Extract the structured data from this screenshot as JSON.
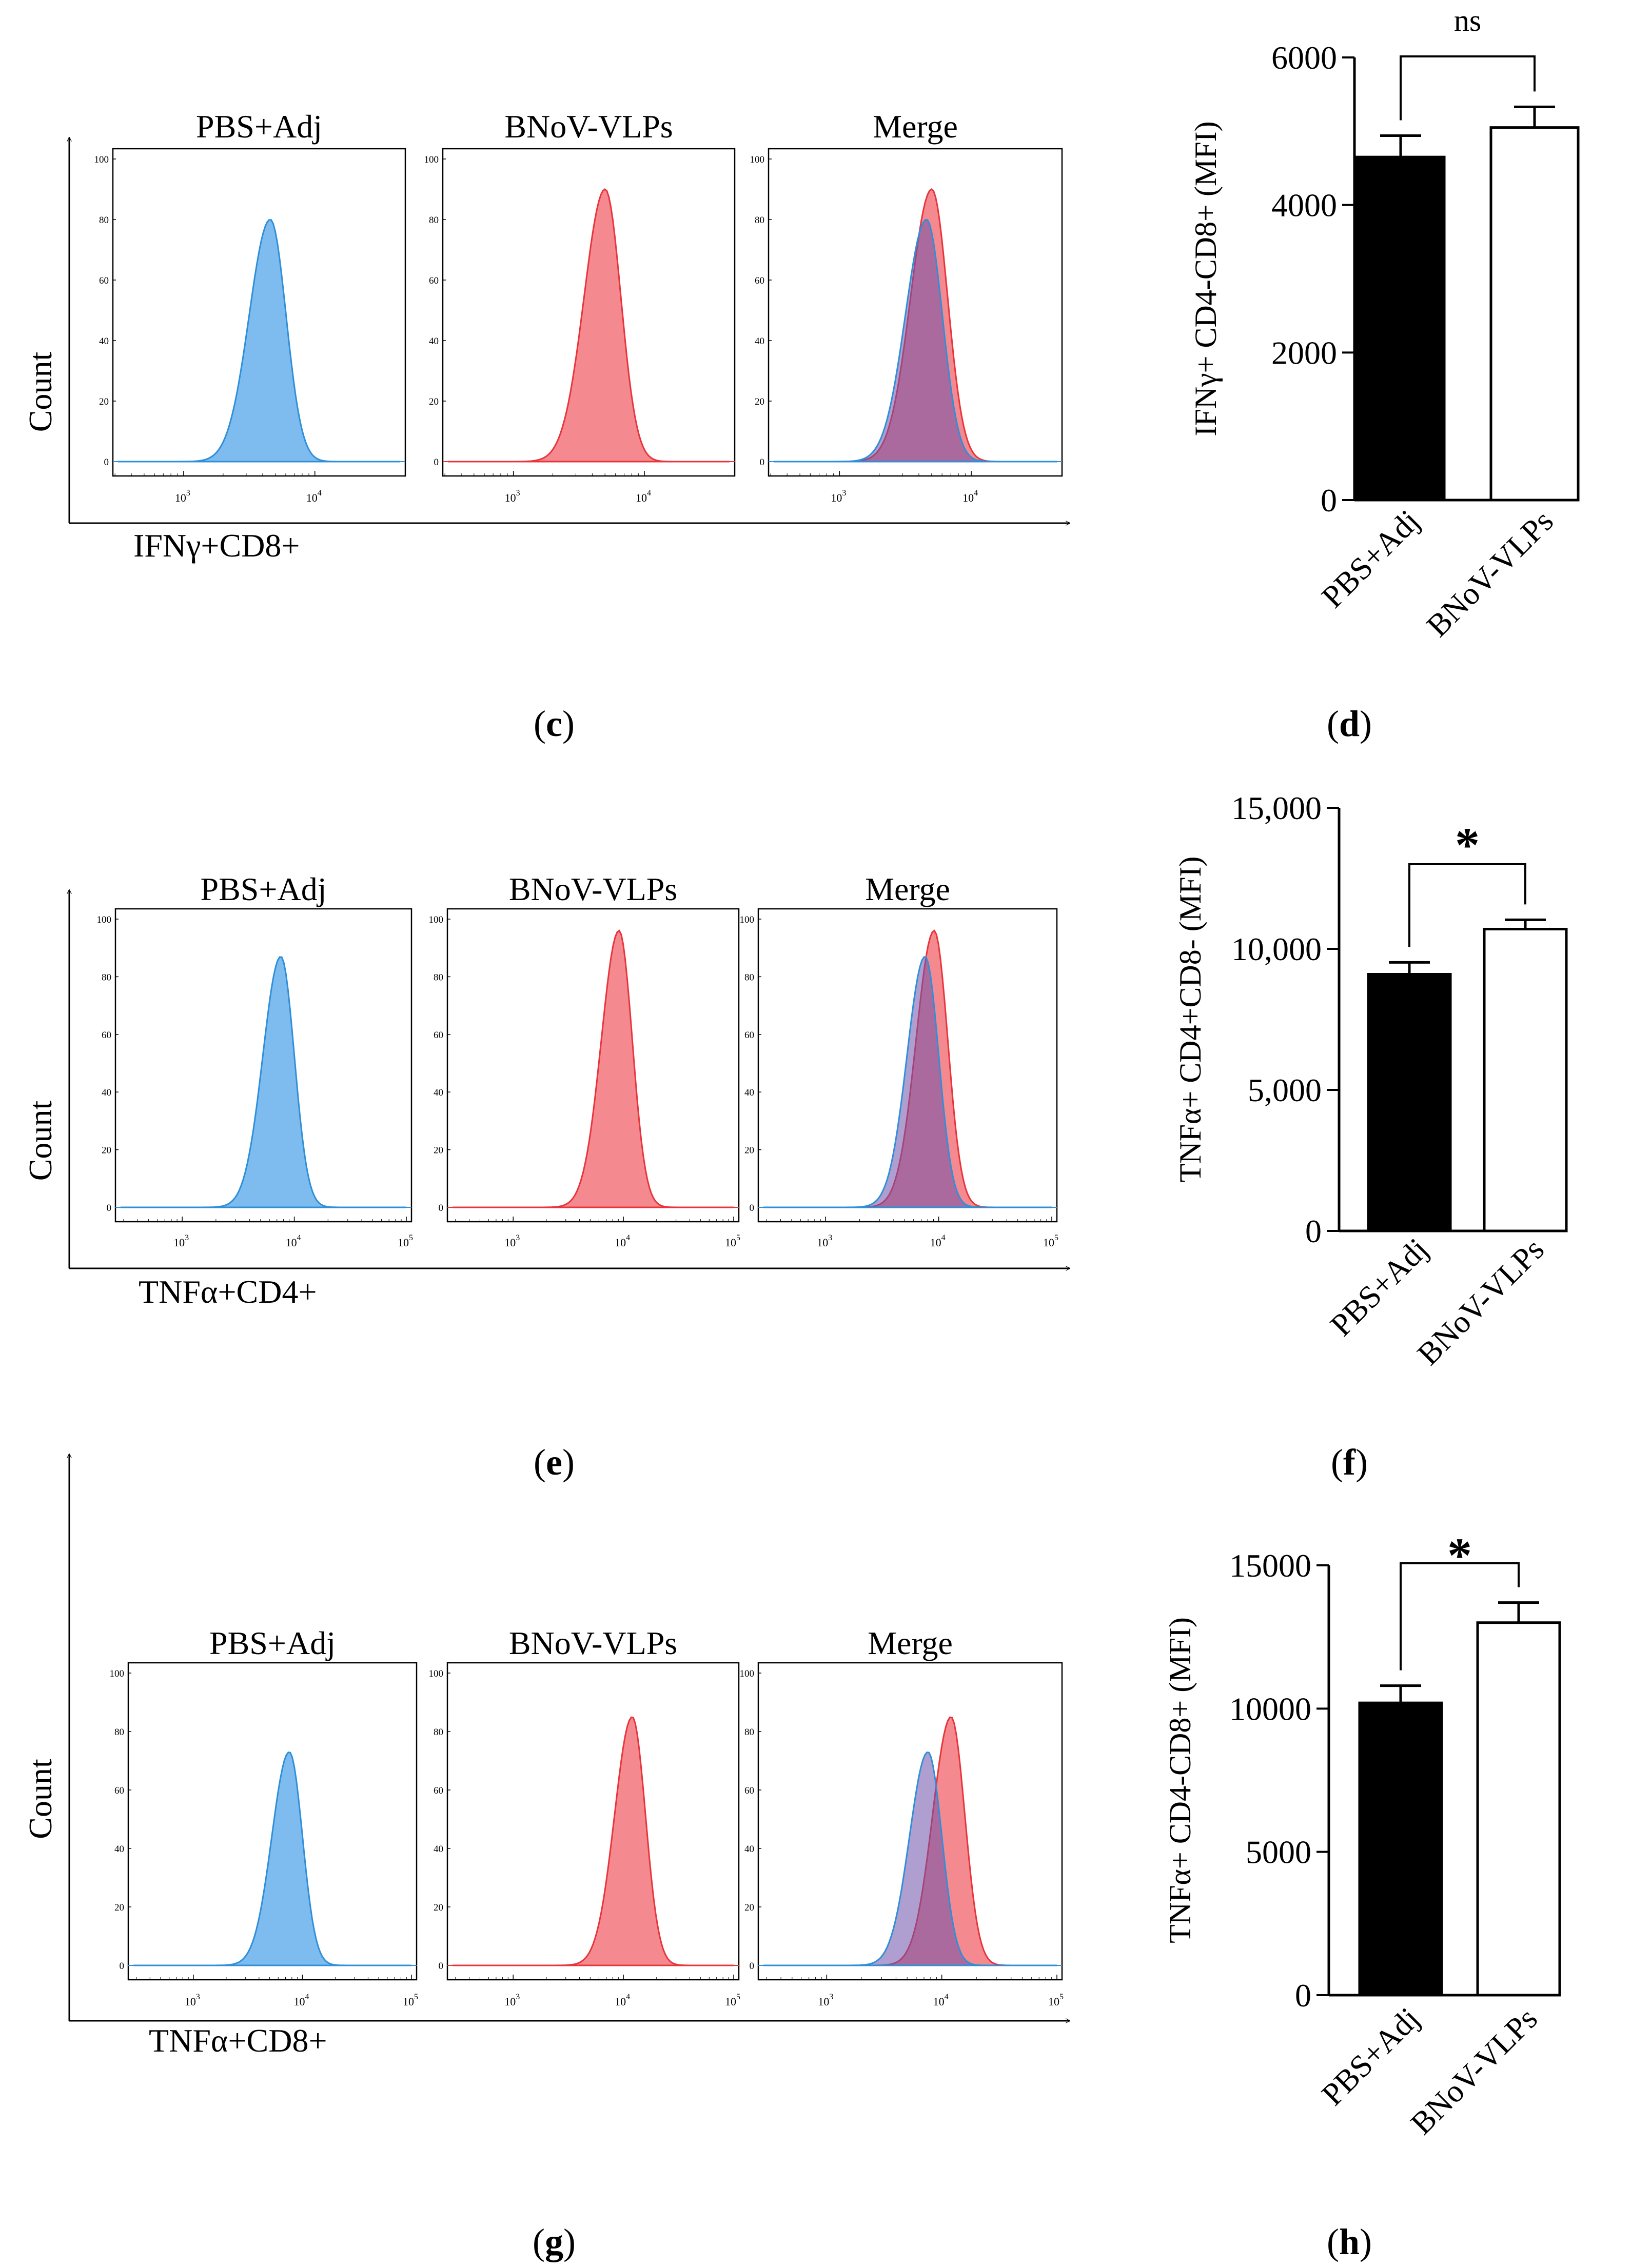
{
  "chart_data": [
    {
      "type": "histogram",
      "panel": "c",
      "xlabel": "IFNγ+CD8+",
      "ylabel": "Count",
      "subpanels": [
        {
          "title": "PBS+Adj",
          "series": [
            {
              "name": "PBS+Adj",
              "color": "#2f8fd8",
              "fill": "#7ebcf0",
              "peak_log10": 3.66,
              "peak_count": 80
            }
          ]
        },
        {
          "title": "BNoV-VLPs",
          "series": [
            {
              "name": "BNoV-VLPs",
              "color": "#e8353c",
              "fill": "#f48a8f",
              "peak_log10": 3.7,
              "peak_count": 90
            }
          ]
        },
        {
          "title": "Merge",
          "series": [
            {
              "name": "BNoV-VLPs",
              "color": "#e8353c",
              "fill": "#f48a8f",
              "peak_log10": 3.7,
              "peak_count": 90
            },
            {
              "name": "PBS+Adj",
              "color": "#2f8fd8",
              "fill": "#7ebcf0",
              "peak_log10": 3.66,
              "peak_count": 80
            }
          ]
        }
      ],
      "y_ticks": [
        "100",
        "80",
        "60",
        "40",
        "20",
        "0"
      ],
      "x_ticks": [
        {
          "base": "10",
          "exp": "3"
        },
        {
          "base": "10",
          "exp": "4"
        }
      ],
      "xlim_log10": [
        2.5,
        4.65
      ]
    },
    {
      "type": "bar",
      "panel": "d",
      "categories": [
        "PBS+Adj",
        "BNoV-VLPs"
      ],
      "values": [
        4650,
        5050
      ],
      "errors": [
        290,
        280
      ],
      "bar_colors": [
        "#000000",
        "#ffffff"
      ],
      "ylabel": "IFNγ+ CD4-CD8+ (MFI)",
      "ylim": [
        0,
        6000
      ],
      "y_ticks": [
        {
          "value": 0,
          "label": "0"
        },
        {
          "value": 2000,
          "label": "2000"
        },
        {
          "value": 4000,
          "label": "4000"
        },
        {
          "value": 6000,
          "label": "6000"
        }
      ],
      "significance": "ns"
    },
    {
      "type": "histogram",
      "panel": "e",
      "xlabel": "TNFα+CD4+",
      "ylabel": "Count",
      "subpanels": [
        {
          "title": "PBS+Adj",
          "series": [
            {
              "name": "PBS+Adj",
              "color": "#2f8fd8",
              "fill": "#7ebcf0",
              "peak_log10": 3.88,
              "peak_count": 87
            }
          ]
        },
        {
          "title": "BNoV-VLPs",
          "series": [
            {
              "name": "BNoV-VLPs",
              "color": "#e8353c",
              "fill": "#f48a8f",
              "peak_log10": 3.96,
              "peak_count": 96
            }
          ]
        },
        {
          "title": "Merge",
          "series": [
            {
              "name": "BNoV-VLPs",
              "color": "#e8353c",
              "fill": "#f48a8f",
              "peak_log10": 3.96,
              "peak_count": 96
            },
            {
              "name": "PBS+Adj",
              "color": "#2f8fd8",
              "fill": "#7ebcf0",
              "peak_log10": 3.88,
              "peak_count": 87
            }
          ]
        }
      ],
      "y_ticks": [
        "100",
        "80",
        "60",
        "40",
        "20",
        "0"
      ],
      "x_ticks": [
        {
          "base": "10",
          "exp": "3"
        },
        {
          "base": "10",
          "exp": "4"
        },
        {
          "base": "10",
          "exp": "5"
        }
      ],
      "xlim_log10": [
        2.45,
        5.0
      ]
    },
    {
      "type": "bar",
      "panel": "f",
      "categories": [
        "PBS+Adj",
        "BNoV-VLPs"
      ],
      "values": [
        9100,
        10700
      ],
      "errors": [
        420,
        330
      ],
      "bar_colors": [
        "#000000",
        "#ffffff"
      ],
      "ylabel": "TNFα+ CD4+CD8- (MFI)",
      "ylim": [
        0,
        15000
      ],
      "y_ticks": [
        {
          "value": 0,
          "label": "0"
        },
        {
          "value": 5000,
          "label": "5,000"
        },
        {
          "value": 10000,
          "label": "10,000"
        },
        {
          "value": 15000,
          "label": "15,000"
        }
      ],
      "significance": "*"
    },
    {
      "type": "histogram",
      "panel": "g",
      "xlabel": "TNFα+CD8+",
      "ylabel": "Count",
      "subpanels": [
        {
          "title": "PBS+Adj",
          "series": [
            {
              "name": "PBS+Adj",
              "color": "#2f8fd8",
              "fill": "#7ebcf0",
              "peak_log10": 3.88,
              "peak_count": 73
            }
          ]
        },
        {
          "title": "BNoV-VLPs",
          "series": [
            {
              "name": "BNoV-VLPs",
              "color": "#e8353c",
              "fill": "#f48a8f",
              "peak_log10": 4.08,
              "peak_count": 85
            }
          ]
        },
        {
          "title": "Merge",
          "series": [
            {
              "name": "BNoV-VLPs",
              "color": "#e8353c",
              "fill": "#f48a8f",
              "peak_log10": 4.08,
              "peak_count": 85
            },
            {
              "name": "PBS+Adj",
              "color": "#2f8fd8",
              "fill": "#7ebcf0",
              "peak_log10": 3.88,
              "peak_count": 73
            }
          ]
        }
      ],
      "y_ticks": [
        "100",
        "80",
        "60",
        "40",
        "20",
        "0"
      ],
      "x_ticks": [
        {
          "base": "10",
          "exp": "3"
        },
        {
          "base": "10",
          "exp": "4"
        },
        {
          "base": "10",
          "exp": "5"
        }
      ],
      "xlim_log10": [
        2.45,
        5.0
      ]
    },
    {
      "type": "bar",
      "panel": "h",
      "categories": [
        "PBS+Adj",
        "BNoV-VLPs"
      ],
      "values": [
        10200,
        13000
      ],
      "errors": [
        600,
        700
      ],
      "bar_colors": [
        "#000000",
        "#ffffff"
      ],
      "ylabel": "TNFα+ CD4-CD8+ (MFI)",
      "ylim": [
        0,
        15000
      ],
      "y_ticks": [
        {
          "value": 0,
          "label": "0"
        },
        {
          "value": 5000,
          "label": "5000"
        },
        {
          "value": 10000,
          "label": "10000"
        },
        {
          "value": 15000,
          "label": "15000"
        }
      ],
      "significance": "*"
    }
  ],
  "panel_labels": [
    {
      "letter": "c"
    },
    {
      "letter": "d"
    },
    {
      "letter": "e"
    },
    {
      "letter": "f"
    },
    {
      "letter": "g"
    },
    {
      "letter": "h"
    }
  ]
}
